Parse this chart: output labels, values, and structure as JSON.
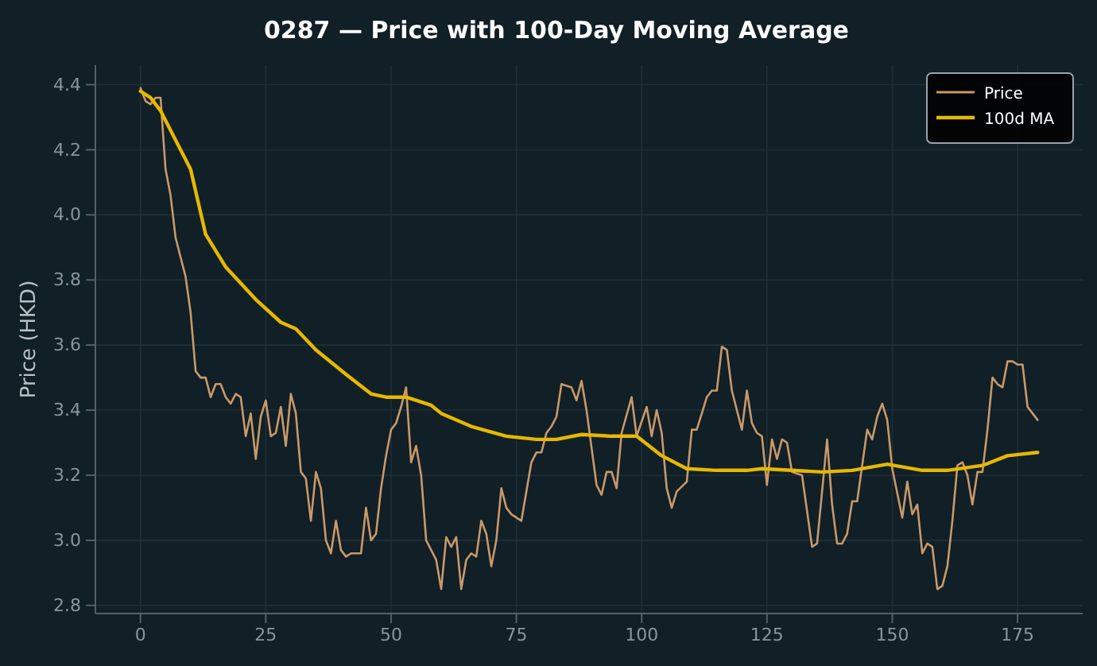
{
  "chart_data": {
    "type": "line",
    "title": "0287 — Price with 100-Day Moving Average",
    "ylabel": "Price (HKD)",
    "xlim": [
      -9,
      188
    ],
    "xticks": [
      0,
      25,
      50,
      75,
      100,
      125,
      150,
      175
    ],
    "ylim": [
      2.775,
      4.46
    ],
    "yticks": [
      {
        "value": 2.8,
        "label": "2.8"
      },
      {
        "value": 3.0,
        "label": "3.0"
      },
      {
        "value": 3.2,
        "label": "3.2"
      },
      {
        "value": 3.4,
        "label": "3.4"
      },
      {
        "value": 3.6,
        "label": "3.6"
      },
      {
        "value": 3.8,
        "label": "3.8"
      },
      {
        "value": 4.0,
        "label": "4.0"
      },
      {
        "value": 4.2,
        "label": "4.2"
      },
      {
        "value": 4.4,
        "label": "4.4"
      }
    ],
    "grid": true,
    "legend": "top right",
    "series": [
      {
        "name": "Price",
        "color": "#c8996a",
        "x": [
          0,
          1,
          2,
          3,
          4,
          5,
          6,
          7,
          8,
          9,
          10,
          11,
          12,
          13,
          14,
          15,
          16,
          17,
          18,
          19,
          20,
          21,
          22,
          23,
          24,
          25,
          26,
          27,
          28,
          29,
          30,
          31,
          32,
          33,
          34,
          35,
          36,
          37,
          38,
          39,
          40,
          41,
          42,
          43,
          44,
          45,
          46,
          47,
          48,
          49,
          50,
          51,
          52,
          53,
          54,
          55,
          56,
          57,
          59,
          60,
          61,
          62,
          63,
          64,
          65,
          66,
          67,
          68,
          69,
          70,
          71,
          72,
          73,
          74,
          76,
          78,
          79,
          80,
          81,
          82,
          83,
          84,
          86,
          87,
          88,
          89,
          91,
          92,
          93,
          94,
          95,
          96,
          98,
          99,
          101,
          102,
          103,
          104,
          105,
          106,
          107,
          109,
          110,
          111,
          113,
          114,
          115,
          116,
          117,
          118,
          120,
          121,
          122,
          123,
          124,
          125,
          126,
          127,
          128,
          129,
          130,
          132,
          134,
          135,
          137,
          138,
          139,
          140,
          141,
          142,
          143,
          145,
          146,
          147,
          148,
          149,
          150,
          152,
          153,
          154,
          155,
          156,
          157,
          158,
          159,
          160,
          161,
          162,
          163,
          164,
          165,
          166,
          167,
          168,
          169,
          170,
          171,
          172,
          173,
          174,
          175,
          176,
          177,
          178,
          179
        ],
        "values": [
          4.39,
          4.35,
          4.34,
          4.36,
          4.36,
          4.14,
          4.06,
          3.93,
          3.87,
          3.81,
          3.7,
          3.52,
          3.5,
          3.5,
          3.44,
          3.48,
          3.48,
          3.44,
          3.42,
          3.45,
          3.44,
          3.32,
          3.39,
          3.25,
          3.38,
          3.43,
          3.32,
          3.33,
          3.41,
          3.29,
          3.45,
          3.39,
          3.21,
          3.19,
          3.06,
          3.21,
          3.16,
          3.0,
          2.96,
          3.06,
          2.97,
          2.95,
          2.96,
          2.96,
          2.96,
          3.1,
          3.0,
          3.02,
          3.16,
          3.26,
          3.34,
          3.36,
          3.41,
          3.47,
          3.24,
          3.29,
          3.2,
          3.0,
          2.94,
          2.85,
          3.01,
          2.98,
          3.01,
          2.85,
          2.94,
          2.96,
          2.95,
          3.06,
          3.02,
          2.92,
          3.0,
          3.16,
          3.1,
          3.08,
          3.06,
          3.24,
          3.27,
          3.27,
          3.33,
          3.35,
          3.38,
          3.48,
          3.47,
          3.43,
          3.49,
          3.4,
          3.17,
          3.14,
          3.21,
          3.21,
          3.16,
          3.33,
          3.44,
          3.32,
          3.41,
          3.32,
          3.4,
          3.33,
          3.16,
          3.1,
          3.15,
          3.18,
          3.34,
          3.34,
          3.44,
          3.46,
          3.46,
          3.595,
          3.585,
          3.46,
          3.34,
          3.46,
          3.36,
          3.33,
          3.32,
          3.17,
          3.31,
          3.25,
          3.31,
          3.3,
          3.21,
          3.2,
          2.98,
          2.99,
          3.31,
          3.11,
          2.99,
          2.99,
          3.02,
          3.12,
          3.12,
          3.34,
          3.31,
          3.38,
          3.42,
          3.37,
          3.22,
          3.07,
          3.18,
          3.08,
          3.11,
          2.96,
          2.99,
          2.98,
          2.85,
          2.86,
          2.92,
          3.06,
          3.23,
          3.24,
          3.2,
          3.11,
          3.21,
          3.21,
          3.34,
          3.5,
          3.48,
          3.47,
          3.55,
          3.55,
          3.54,
          3.54,
          3.41,
          3.39,
          3.37
        ]
      },
      {
        "name": "100d MA",
        "color": "#e6b800",
        "x": [
          0,
          2,
          4,
          7,
          10,
          13,
          17,
          23,
          28,
          31,
          35,
          41,
          46,
          49,
          53,
          58,
          60,
          66,
          73,
          79,
          83,
          88,
          94,
          99,
          104,
          109,
          115,
          121,
          124,
          136,
          142,
          149,
          156,
          161,
          168,
          173,
          179
        ],
        "values": [
          4.38,
          4.36,
          4.32,
          4.23,
          4.14,
          3.94,
          3.84,
          3.74,
          3.67,
          3.65,
          3.585,
          3.51,
          3.45,
          3.44,
          3.44,
          3.415,
          3.39,
          3.35,
          3.32,
          3.31,
          3.31,
          3.325,
          3.32,
          3.32,
          3.26,
          3.22,
          3.215,
          3.215,
          3.22,
          3.21,
          3.215,
          3.234,
          3.215,
          3.215,
          3.23,
          3.26,
          3.27
        ]
      }
    ]
  }
}
